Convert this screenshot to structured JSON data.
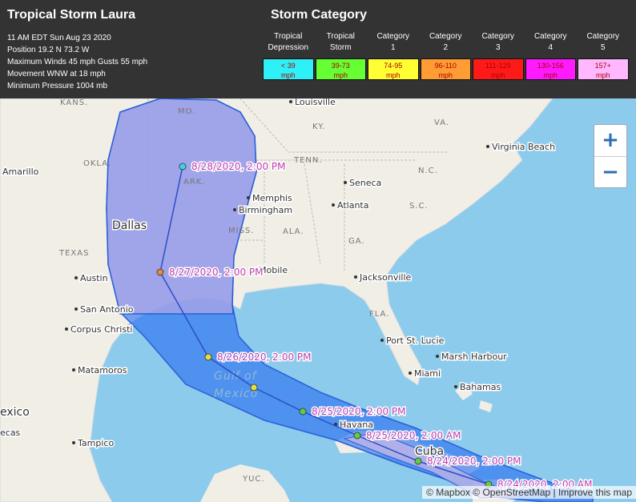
{
  "header": {
    "title": "Tropical Storm Laura",
    "details": [
      "11 AM EDT Sun Aug 23 2020",
      "Position 19.2 N 73.2 W",
      "Maximum Winds 45 mph Gusts 55 mph",
      "Movement WNW at 18 mph",
      "Minimum Pressure 1004 mb"
    ]
  },
  "legend": {
    "title": "Storm Category",
    "categories": [
      {
        "name": [
          "Tropical",
          "Depression"
        ],
        "range": [
          "< 39",
          "mph"
        ],
        "color": "#2ef0f7"
      },
      {
        "name": [
          "Tropical",
          "Storm"
        ],
        "range": [
          "39-73",
          "mph"
        ],
        "color": "#66ff33"
      },
      {
        "name": [
          "Category",
          "1"
        ],
        "range": [
          "74-95",
          "mph"
        ],
        "color": "#ffff33"
      },
      {
        "name": [
          "Category",
          "2"
        ],
        "range": [
          "96-110",
          "mph"
        ],
        "color": "#ff9c33"
      },
      {
        "name": [
          "Category",
          "3"
        ],
        "range": [
          "111-129",
          "mph"
        ],
        "color": "#ff1a1a"
      },
      {
        "name": [
          "Category",
          "4"
        ],
        "range": [
          "130-156",
          "mph"
        ],
        "color": "#ff1aff"
      },
      {
        "name": [
          "Category",
          "5"
        ],
        "range": [
          "157+",
          "mph"
        ],
        "color": "#ffb8ff"
      }
    ]
  },
  "map": {
    "labels": [
      "KANS.",
      "MO.",
      "Louisville",
      "KY.",
      "VA.",
      "Virginia Beach",
      "OKLA.",
      "Amarillo",
      "TENN.",
      "N.C.",
      "ARK.",
      "Memphis",
      "Seneca",
      "Birmingham",
      "Atlanta",
      "S.C.",
      "Dallas",
      "MISS.",
      "ALA.",
      "GA.",
      "TEXAS",
      "Austin",
      "Mobile",
      "Jacksonville",
      "San Antonio",
      "FLA.",
      "Corpus Christi",
      "Port St. Lucie",
      "Marsh Harbour",
      "Miami",
      "Matamoros",
      "Bahamas",
      "Gulf of",
      "Mexico",
      "exico",
      "Havana",
      "Cuba",
      "Tampico",
      "YUC.",
      "ecas"
    ],
    "track": [
      {
        "label": "8/28/2020, 2:00 PM",
        "color": "#3ad6e6"
      },
      {
        "label": "8/27/2020, 2:00 PM",
        "color": "#e8883a"
      },
      {
        "label": "8/26/2020, 2:00 PM",
        "color": "#e3e03a"
      },
      {
        "label": null,
        "color": "#e3e03a"
      },
      {
        "label": "8/25/2020, 2:00 PM",
        "color": "#5ccf4a"
      },
      {
        "label": "8/25/2020, 2:00 AM",
        "color": "#5ccf4a"
      },
      {
        "label": "8/24/2020, 2:00 PM",
        "color": "#5ccf4a"
      },
      {
        "label": "8/24/2020, 2:00 AM",
        "color": "#5ccf4a"
      }
    ],
    "zoom_in": "+",
    "zoom_out": "−",
    "attribution": "© Mapbox © OpenStreetMap | Improve this map"
  }
}
